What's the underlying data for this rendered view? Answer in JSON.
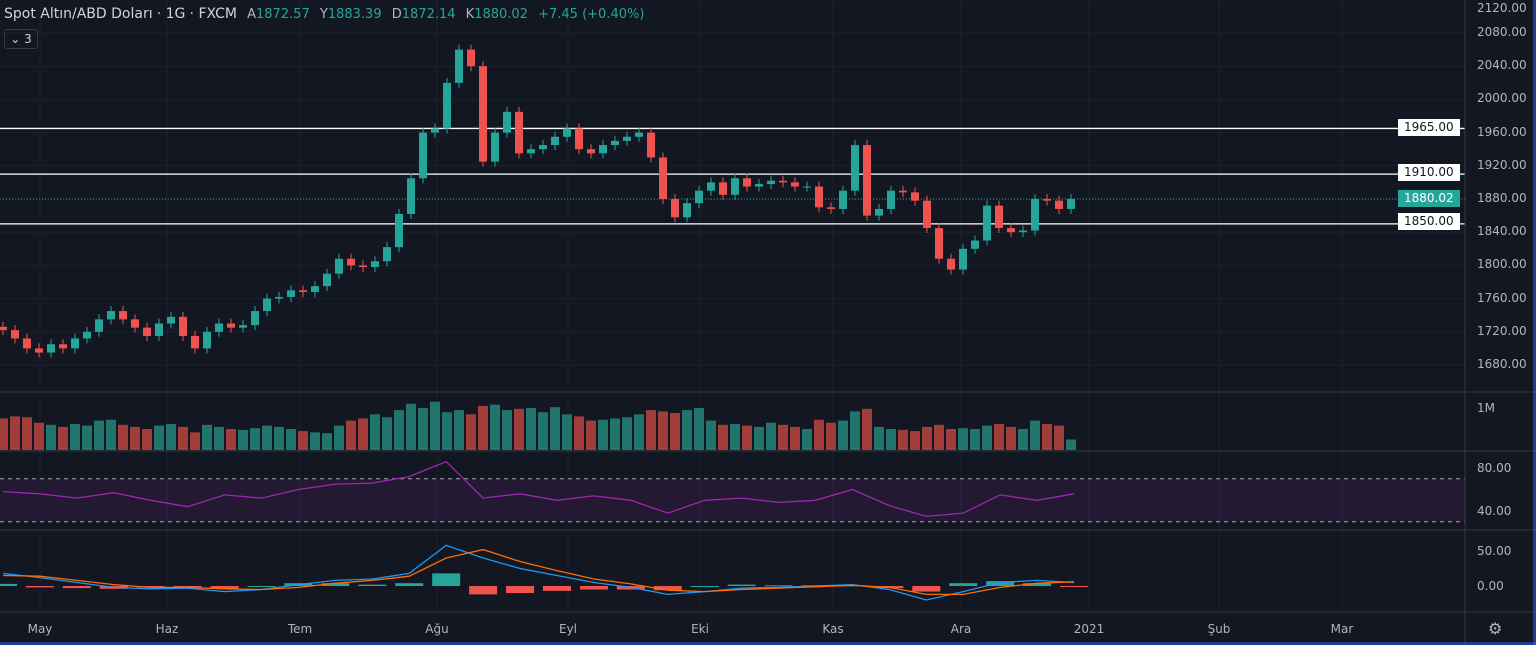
{
  "header": {
    "symbol": "Spot Altın/ABD Doları",
    "interval": "1G",
    "exchange": "FXCM",
    "open_label": "A",
    "open": "1872.57",
    "high_label": "Y",
    "high": "1883.39",
    "low_label": "D",
    "low": "1872.14",
    "close_label": "K",
    "close": "1880.02",
    "change": "+7.45 (+0.40%)"
  },
  "collapse_button": {
    "label": "⌄ 3"
  },
  "price_axis": [
    "2120.00",
    "2080.00",
    "2040.00",
    "2000.00",
    "1960.00",
    "1920.00",
    "1880.00",
    "1840.00",
    "1800.00",
    "1760.00",
    "1720.00",
    "1680.00"
  ],
  "levels": {
    "resistance_high": "1965.00",
    "resistance": "1910.00",
    "current": "1880.02",
    "support": "1850.00"
  },
  "volume_axis": "1M",
  "rsi_axis": [
    "80.00",
    "40.00"
  ],
  "macd_axis": [
    "50.00",
    "0.00"
  ],
  "time_axis": [
    "May",
    "Haz",
    "Tem",
    "Ağu",
    "Eyl",
    "Eki",
    "Kas",
    "Ara",
    "2021",
    "Şub",
    "Mar"
  ],
  "colors": {
    "up": "#26a69a",
    "down": "#ef5350",
    "bg": "#131722",
    "rsi": "#9c27b0",
    "macd": "#2196f3",
    "signal": "#ff6d00"
  },
  "chart_data": {
    "type": "candlestick",
    "title": "Spot Altın/ABD Doları · 1G · FXCM",
    "ylim": [
      1640,
      2130
    ],
    "horizontal_lines": [
      1965,
      1910,
      1850
    ],
    "closes": [
      1722,
      1712,
      1700,
      1695,
      1705,
      1700,
      1712,
      1720,
      1735,
      1745,
      1735,
      1725,
      1715,
      1730,
      1738,
      1715,
      1700,
      1720,
      1730,
      1725,
      1728,
      1745,
      1760,
      1762,
      1770,
      1768,
      1775,
      1790,
      1808,
      1800,
      1798,
      1805,
      1822,
      1862,
      1905,
      1960,
      1965,
      2020,
      2060,
      2040,
      1925,
      1960,
      1985,
      1935,
      1940,
      1945,
      1955,
      1965,
      1940,
      1935,
      1945,
      1950,
      1955,
      1960,
      1930,
      1880,
      1858,
      1875,
      1890,
      1900,
      1885,
      1905,
      1895,
      1898,
      1902,
      1900,
      1895,
      1895,
      1870,
      1868,
      1890,
      1945,
      1860,
      1868,
      1890,
      1888,
      1878,
      1845,
      1808,
      1795,
      1820,
      1830,
      1872,
      1845,
      1840,
      1842,
      1880,
      1878,
      1868,
      1880.02
    ],
    "volume_millions": [
      0.75,
      0.8,
      0.78,
      0.65,
      0.6,
      0.55,
      0.62,
      0.58,
      0.7,
      0.72,
      0.6,
      0.55,
      0.5,
      0.58,
      0.62,
      0.55,
      0.42,
      0.6,
      0.55,
      0.5,
      0.48,
      0.52,
      0.58,
      0.55,
      0.5,
      0.45,
      0.42,
      0.4,
      0.58,
      0.7,
      0.75,
      0.85,
      0.78,
      0.95,
      1.1,
      1.0,
      1.15,
      0.9,
      0.95,
      0.85,
      1.05,
      1.08,
      0.95,
      0.98,
      1.0,
      0.9,
      1.02,
      0.85,
      0.8,
      0.7,
      0.72,
      0.75,
      0.78,
      0.85,
      0.95,
      0.92,
      0.88,
      0.95,
      1.0,
      0.7,
      0.6,
      0.62,
      0.58,
      0.55,
      0.65,
      0.6,
      0.55,
      0.5,
      0.72,
      0.65,
      0.7,
      0.92,
      0.98,
      0.55,
      0.5,
      0.48,
      0.45,
      0.55,
      0.6,
      0.5,
      0.52,
      0.5,
      0.58,
      0.62,
      0.55,
      0.5,
      0.7,
      0.62,
      0.58,
      0.25
    ],
    "rsi": {
      "upper_band": 70,
      "lower_band": 30,
      "values": [
        58,
        56,
        52,
        57,
        50,
        44,
        55,
        52,
        60,
        65,
        66,
        72,
        86,
        52,
        56,
        50,
        54,
        50,
        38,
        50,
        52,
        48,
        50,
        60,
        45,
        35,
        38,
        55,
        50,
        56
      ]
    },
    "macd": {
      "macd": [
        18,
        12,
        5,
        -2,
        -4,
        -3,
        -8,
        -5,
        2,
        8,
        10,
        18,
        58,
        40,
        25,
        15,
        5,
        -2,
        -12,
        -8,
        -3,
        -2,
        0,
        2,
        -5,
        -20,
        -8,
        5,
        8,
        5
      ],
      "signal": [
        15,
        14,
        8,
        2,
        -2,
        -2,
        -4,
        -5,
        -2,
        4,
        8,
        14,
        40,
        52,
        35,
        22,
        10,
        3,
        -6,
        -8,
        -5,
        -3,
        -1,
        1,
        -2,
        -12,
        -12,
        -2,
        4,
        6
      ]
    }
  }
}
